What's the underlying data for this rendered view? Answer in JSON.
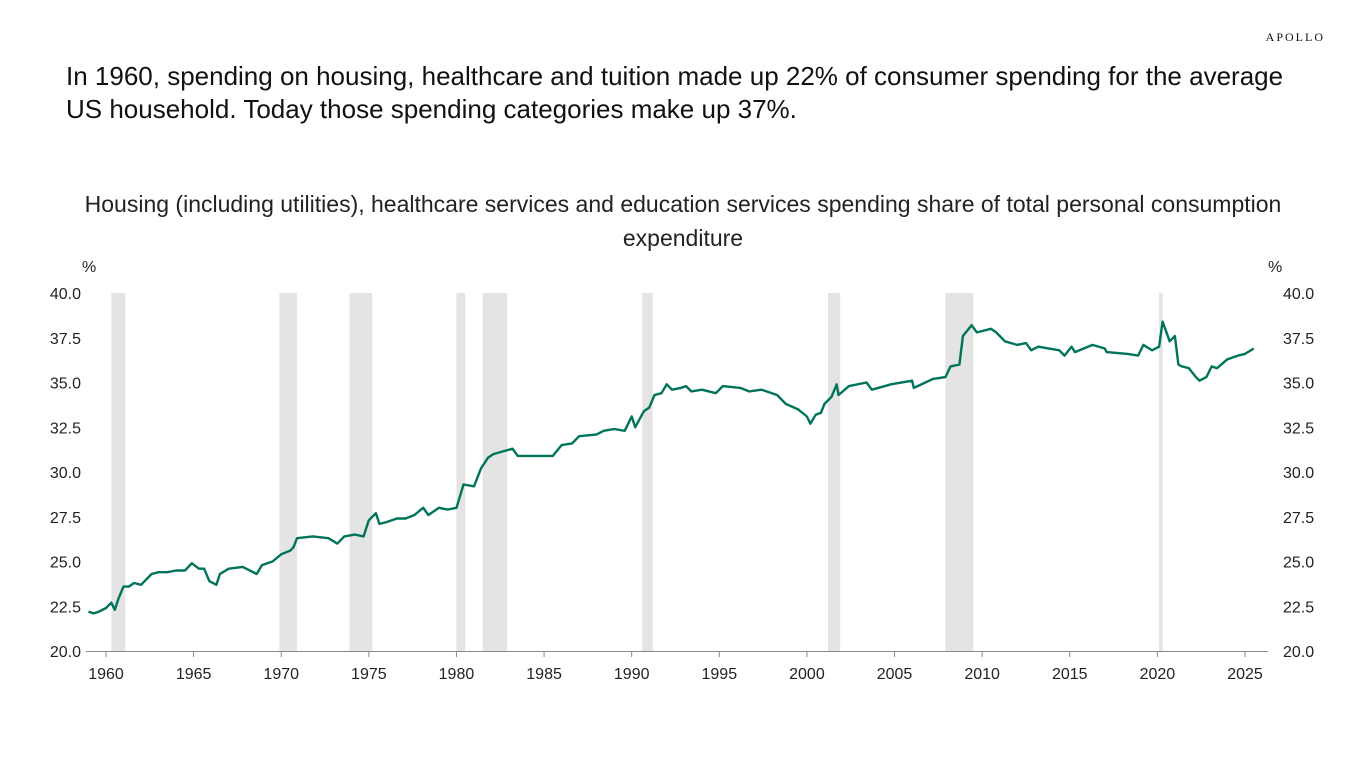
{
  "brand": "APOLLO",
  "headline": "In 1960, spending on housing, healthcare and tuition made up 22% of consumer spending for the average US household. Today those spending categories make up 37%.",
  "chart_data": {
    "type": "line",
    "title": "Housing (including utilities), healthcare services and education services spending share of total personal consumption expenditure",
    "ylabel_left": "%",
    "ylabel_right": "%",
    "ylim": [
      20,
      40
    ],
    "xlim": [
      1959,
      2025.8
    ],
    "yticks": [
      "20.0",
      "22.5",
      "25.0",
      "27.5",
      "30.0",
      "32.5",
      "35.0",
      "37.5",
      "40.0"
    ],
    "xticks": [
      "1960",
      "1965",
      "1970",
      "1975",
      "1980",
      "1985",
      "1990",
      "1995",
      "2000",
      "2005",
      "2010",
      "2015",
      "2020",
      "2025"
    ],
    "grid": false,
    "line_color": "#00745A",
    "recession_color": "#E3E4E3",
    "recessions": [
      [
        1960.3,
        1961.1
      ],
      [
        1969.9,
        1970.9
      ],
      [
        1973.9,
        1975.2
      ],
      [
        1980.0,
        1980.5
      ],
      [
        1981.5,
        1982.9
      ],
      [
        1990.6,
        1991.2
      ],
      [
        2001.2,
        2001.9
      ],
      [
        2007.9,
        2009.5
      ],
      [
        2020.1,
        2020.3
      ]
    ],
    "series": [
      {
        "x": [
          1959.0,
          1959.3,
          1959.6,
          1960.0,
          1960.3,
          1960.5,
          1960.7,
          1961.0,
          1961.3,
          1961.6,
          1962.0,
          1962.6,
          1963.0,
          1963.5,
          1964.0,
          1964.5,
          1964.9,
          1965.3,
          1965.6,
          1965.9,
          1966.3,
          1966.5,
          1967.0,
          1967.8,
          1968.6,
          1968.9,
          1969.5,
          1970.0,
          1970.5,
          1970.7,
          1970.9,
          1971.8,
          1972.7,
          1973.2,
          1973.6,
          1974.2,
          1974.7,
          1975.0,
          1975.4,
          1975.6,
          1976.0,
          1976.6,
          1977.1,
          1977.6,
          1978.1,
          1978.4,
          1979.0,
          1979.5,
          1980.0,
          1980.4,
          1981.0,
          1981.4,
          1981.8,
          1982.1,
          1983.2,
          1983.5,
          1984.0,
          1984.4,
          1985.5,
          1986.0,
          1986.6,
          1987.0,
          1988.0,
          1988.4,
          1989.0,
          1989.6,
          1990.0,
          1990.2,
          1990.7,
          1991.0,
          1991.3,
          1991.7,
          1992.0,
          1992.3,
          1992.8,
          1993.1,
          1993.4,
          1994.0,
          1994.8,
          1995.2,
          1996.2,
          1996.7,
          1997.4,
          1998.3,
          1998.8,
          1999.5,
          2000.0,
          2000.2,
          2000.5,
          2000.8,
          2001.0,
          2001.4,
          2001.7,
          2001.8,
          2002.4,
          2003.4,
          2003.7,
          2004.8,
          2006.0,
          2006.1,
          2007.2,
          2007.9,
          2008.2,
          2008.7,
          2008.9,
          2009.4,
          2009.7,
          2010.5,
          2010.8,
          2011.3,
          2012.0,
          2012.5,
          2012.8,
          2013.2,
          2014.4,
          2014.7,
          2015.1,
          2015.3,
          2016.3,
          2017.0,
          2017.1,
          2018.3,
          2018.9,
          2019.2,
          2019.7,
          2020.1,
          2020.3,
          2020.7,
          2021.0,
          2021.2,
          2021.4,
          2021.8,
          2022.2,
          2022.4,
          2022.8,
          2023.1,
          2023.4,
          2024.0,
          2024.6,
          2025.0,
          2025.5
        ],
        "y": [
          22.2,
          22.1,
          22.2,
          22.4,
          22.7,
          22.3,
          22.9,
          23.6,
          23.6,
          23.8,
          23.7,
          24.3,
          24.4,
          24.4,
          24.5,
          24.5,
          24.9,
          24.6,
          24.6,
          23.9,
          23.7,
          24.3,
          24.6,
          24.7,
          24.3,
          24.8,
          25.0,
          25.4,
          25.6,
          25.8,
          26.3,
          26.4,
          26.3,
          26.0,
          26.4,
          26.5,
          26.4,
          27.3,
          27.7,
          27.1,
          27.2,
          27.4,
          27.4,
          27.6,
          28.0,
          27.6,
          28.0,
          27.9,
          28.0,
          29.3,
          29.2,
          30.2,
          30.8,
          31.0,
          31.3,
          30.9,
          30.9,
          30.9,
          30.9,
          31.5,
          31.6,
          32.0,
          32.1,
          32.3,
          32.4,
          32.3,
          33.1,
          32.5,
          33.4,
          33.6,
          34.3,
          34.4,
          34.9,
          34.6,
          34.7,
          34.8,
          34.5,
          34.6,
          34.4,
          34.8,
          34.7,
          34.5,
          34.6,
          34.3,
          33.8,
          33.5,
          33.1,
          32.7,
          33.2,
          33.3,
          33.8,
          34.2,
          34.9,
          34.3,
          34.8,
          35.0,
          34.6,
          34.9,
          35.1,
          34.7,
          35.2,
          35.3,
          35.9,
          36.0,
          37.6,
          38.2,
          37.8,
          38.0,
          37.8,
          37.3,
          37.1,
          37.2,
          36.8,
          37.0,
          36.8,
          36.5,
          37.0,
          36.7,
          37.1,
          36.9,
          36.7,
          36.6,
          36.5,
          37.1,
          36.8,
          37.0,
          38.4,
          37.3,
          37.6,
          36.0,
          35.9,
          35.8,
          35.3,
          35.1,
          35.3,
          35.9,
          35.8,
          36.3,
          36.5,
          36.6,
          36.9
        ]
      }
    ]
  }
}
